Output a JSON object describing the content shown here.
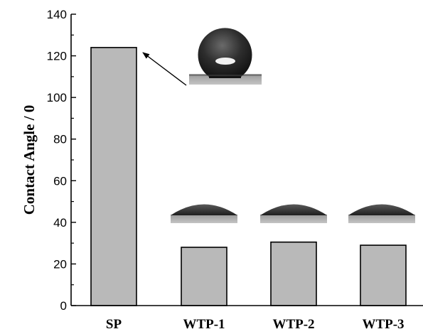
{
  "chart_data": {
    "type": "bar",
    "categories": [
      "SP",
      "WTP-1",
      "WTP-2",
      "WTP-3"
    ],
    "values": [
      124,
      28,
      30.5,
      29
    ],
    "ylabel": "Contact Angle / 0",
    "xlabel": "",
    "ylim": [
      0,
      140
    ],
    "yticks": [
      0,
      20,
      40,
      60,
      80,
      100,
      120,
      140
    ],
    "bar_color": "#b9b9b9",
    "grid": false,
    "insets": "droplet photos above each bar; arrow from SP droplet to SP bar"
  }
}
